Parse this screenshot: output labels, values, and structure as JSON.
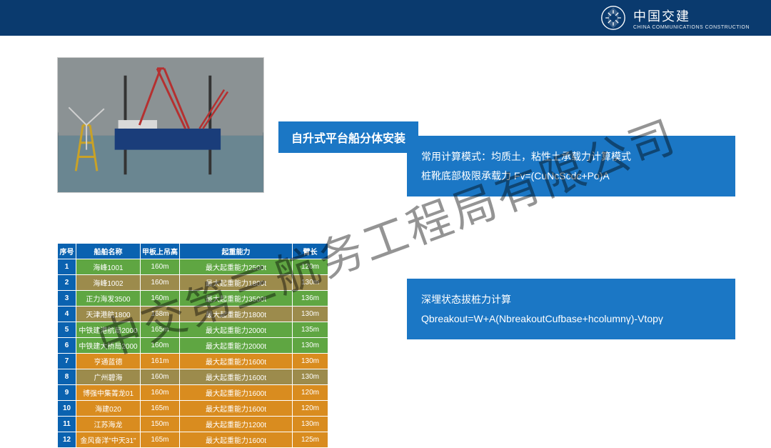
{
  "header": {
    "logo_cn": "中国交建",
    "logo_en": "CHINA COMMUNICATIONS CONSTRUCTION"
  },
  "watermark": "中交第三航务工程局有限公司",
  "slide_title": "自升式平台船分体安装",
  "calc1": {
    "line1": "常用计算模式：均质土，粘性土承载力计算模式",
    "line2": "桩靴底部极限承载力 Fv=(CuNcScdc+Po)A"
  },
  "calc2": {
    "line1": "深埋状态拔桩力计算",
    "line2": "Qbreakout=W+A(NbreakoutCufbase+hcolumnγ)-Vtopγ"
  },
  "table": {
    "headers": [
      "序号",
      "船舶名称",
      "甲板上吊高",
      "起重能力",
      "臂长"
    ],
    "row_colors": {
      "green": "#5fa642",
      "olive": "#9c8b4c",
      "orange": "#d98c1f"
    },
    "rows": [
      {
        "idx": "1",
        "name": "海峰1001",
        "h": "160m",
        "cap": "最大起重能力2500t",
        "arm": "120m",
        "color": "green"
      },
      {
        "idx": "2",
        "name": "海峰1002",
        "h": "160m",
        "cap": "最大起重能力1800t",
        "arm": "130m",
        "color": "olive"
      },
      {
        "idx": "3",
        "name": "正力海发3500",
        "h": "160m",
        "cap": "最大起重能力3500t",
        "arm": "136m",
        "color": "green"
      },
      {
        "idx": "4",
        "name": "天津港航1800",
        "h": "168m",
        "cap": "最大起重能力1800t",
        "arm": "130m",
        "color": "olive"
      },
      {
        "idx": "5",
        "name": "中铁建港航局2000",
        "h": "165m",
        "cap": "最大起重能力2000t",
        "arm": "135m",
        "color": "green"
      },
      {
        "idx": "6",
        "name": "中铁建大桥局2000",
        "h": "160m",
        "cap": "最大起重能力2000t",
        "arm": "130m",
        "color": "green"
      },
      {
        "idx": "7",
        "name": "亨通蓝德",
        "h": "161m",
        "cap": "最大起重能力1600t",
        "arm": "130m",
        "color": "orange"
      },
      {
        "idx": "8",
        "name": "广州碧海",
        "h": "160m",
        "cap": "最大起重能力1600t",
        "arm": "130m",
        "color": "olive"
      },
      {
        "idx": "9",
        "name": "博强中集菁龙01",
        "h": "160m",
        "cap": "最大起重能力1600t",
        "arm": "120m",
        "color": "orange"
      },
      {
        "idx": "10",
        "name": "海建020",
        "h": "165m",
        "cap": "最大起重能力1600t",
        "arm": "120m",
        "color": "orange"
      },
      {
        "idx": "11",
        "name": "江苏海龙",
        "h": "150m",
        "cap": "最大起重能力1200t",
        "arm": "130m",
        "color": "orange"
      },
      {
        "idx": "12",
        "name": "金风奋洋\"中天31\"",
        "h": "165m",
        "cap": "最大起重能力1600t",
        "arm": "125m",
        "color": "orange"
      }
    ]
  },
  "photo": {
    "sky_color": "#8b9294",
    "sea_color": "#6a8691",
    "hull_color": "#1a3d7a",
    "jacket_color": "#c9a227",
    "crane_color": "#b53030"
  }
}
